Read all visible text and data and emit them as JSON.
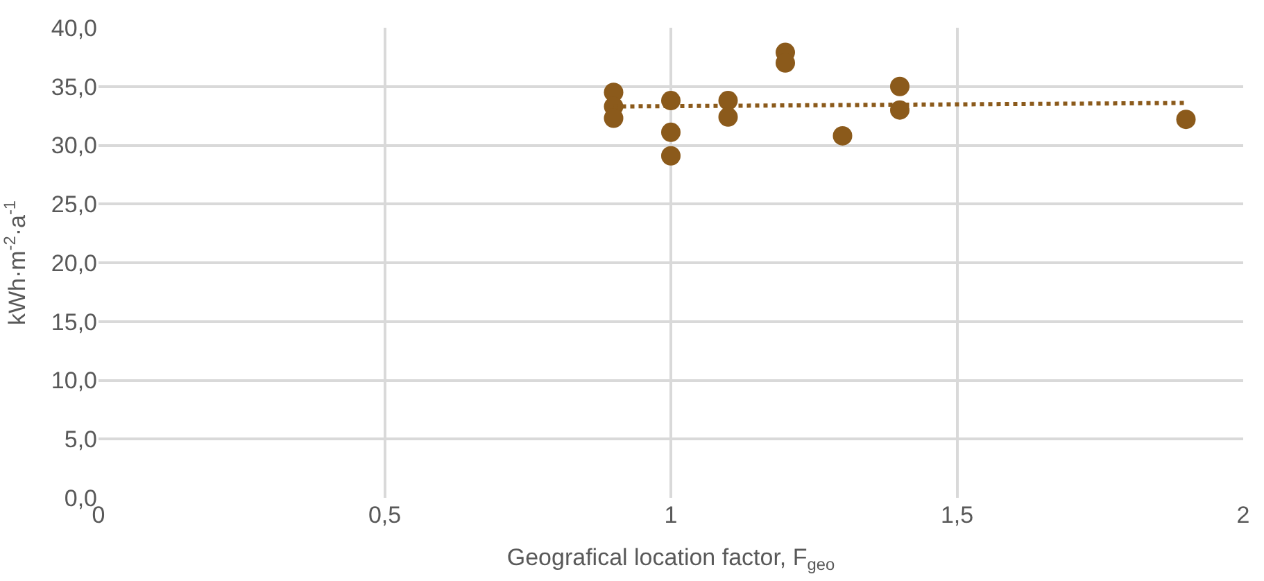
{
  "chart_data": {
    "type": "scatter",
    "xlabel": "Geografical location factor, F$_{geo}$",
    "ylabel": "kWh·m$^{-2}$·a$^{-1}$",
    "series": [
      {
        "color": "#8b5a1b",
        "marker": "circle",
        "x": [
          0.9,
          0.9,
          0.9,
          1.0,
          1.0,
          1.0,
          1.1,
          1.1,
          1.2,
          1.2,
          1.3,
          1.4,
          1.4,
          1.9
        ],
        "values": [
          34.5,
          33.3,
          32.3,
          33.8,
          31.1,
          29.1,
          33.8,
          32.4,
          37.9,
          37.0,
          30.8,
          35.0,
          33.0,
          32.2
        ]
      },
      {
        "type": "line",
        "color": "#8b5a1b",
        "line_style": "dotted",
        "marker": "none",
        "x": [
          0.9,
          1.9
        ],
        "values": [
          33.3,
          33.6
        ]
      }
    ],
    "xlim": [
      0,
      2
    ],
    "xticks": [
      0,
      {
        "value": 0.5,
        "label": "0,5"
      },
      1,
      {
        "value": 1.5,
        "label": "1,5"
      },
      2
    ],
    "ylim": [
      0,
      40
    ],
    "yticks": [
      {
        "value": 0,
        "label": "0,0"
      },
      {
        "value": 5,
        "label": "5,0"
      },
      {
        "value": 10,
        "label": "10,0"
      },
      {
        "value": 15,
        "label": "15,0"
      },
      {
        "value": 20,
        "label": "20,0"
      },
      {
        "value": 25,
        "label": "25,0"
      },
      {
        "value": 30,
        "label": "30,0"
      },
      {
        "value": 35,
        "label": "35,0"
      },
      {
        "value": 40,
        "label": "40,0"
      }
    ],
    "grid": true,
    "legend": false
  }
}
